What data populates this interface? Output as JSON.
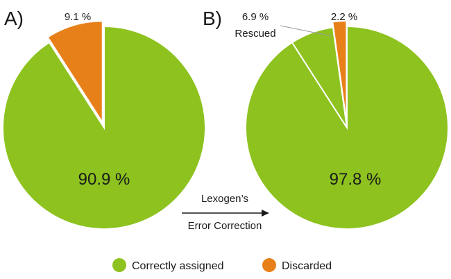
{
  "chart_data": [
    {
      "type": "pie",
      "panel_label": "A)",
      "slices": [
        {
          "name": "Correctly assigned",
          "value": 90.9,
          "label": "90.9 %",
          "color": "#8dc21f"
        },
        {
          "name": "Discarded",
          "value": 9.1,
          "label": "9.1 %",
          "color": "#e8801a",
          "exploded": true
        }
      ]
    },
    {
      "type": "pie",
      "panel_label": "B)",
      "center_label": "97.8 %",
      "slices": [
        {
          "name": "Correctly assigned",
          "value": 90.9,
          "color": "#8dc21f"
        },
        {
          "name": "Rescued",
          "value": 6.9,
          "label": "6.9 %",
          "sublabel": "Rescued",
          "color": "#8dc21f",
          "exploded": true
        },
        {
          "name": "Discarded",
          "value": 2.2,
          "label": "2.2 %",
          "color": "#e8801a",
          "exploded": true
        }
      ]
    }
  ],
  "arrow": {
    "line1": "Lexogen’s",
    "line2": "Error Correction"
  },
  "legend": [
    {
      "label": "Correctly assigned",
      "color": "#8dc21f"
    },
    {
      "label": "Discarded",
      "color": "#e8801a"
    }
  ]
}
